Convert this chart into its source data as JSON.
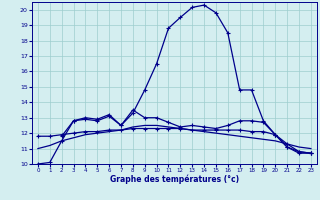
{
  "xlabel": "Graphe des températures (°c)",
  "background_color": "#d4eef0",
  "grid_color": "#9ecece",
  "line_color": "#00008b",
  "xlim": [
    -0.5,
    23.5
  ],
  "ylim": [
    10,
    20.5
  ],
  "yticks": [
    10,
    11,
    12,
    13,
    14,
    15,
    16,
    17,
    18,
    19,
    20
  ],
  "xticks": [
    0,
    1,
    2,
    3,
    4,
    5,
    6,
    7,
    8,
    9,
    10,
    11,
    12,
    13,
    14,
    15,
    16,
    17,
    18,
    19,
    20,
    21,
    22,
    23
  ],
  "line1_x": [
    0,
    1,
    2,
    3,
    4,
    5,
    6,
    7,
    8,
    9,
    10,
    11,
    12,
    13,
    14,
    15,
    16,
    17,
    18,
    19,
    20,
    21,
    22,
    23
  ],
  "line1_y": [
    10.0,
    10.1,
    11.5,
    12.8,
    13.0,
    12.9,
    13.2,
    12.5,
    13.3,
    14.8,
    16.5,
    18.8,
    19.5,
    20.15,
    20.3,
    19.8,
    18.5,
    14.8,
    14.8,
    12.8,
    11.9,
    11.1,
    10.8,
    10.7
  ],
  "line2_x": [
    2,
    3,
    4,
    5,
    6,
    7,
    8,
    9,
    10,
    11,
    12,
    13,
    14,
    15,
    16,
    17,
    18,
    19,
    20,
    21,
    22,
    23
  ],
  "line2_y": [
    11.8,
    12.8,
    12.9,
    12.8,
    13.1,
    12.5,
    13.5,
    13.0,
    13.0,
    12.7,
    12.4,
    12.5,
    12.4,
    12.3,
    12.5,
    12.8,
    12.8,
    12.7,
    11.9,
    11.1,
    10.7,
    10.7
  ],
  "line3_x": [
    0,
    1,
    2,
    3,
    4,
    5,
    6,
    7,
    8,
    9,
    10,
    11,
    12,
    13,
    14,
    15,
    16,
    17,
    18,
    19,
    20,
    21,
    22,
    23
  ],
  "line3_y": [
    11.8,
    11.8,
    11.9,
    12.0,
    12.1,
    12.1,
    12.2,
    12.2,
    12.3,
    12.3,
    12.3,
    12.3,
    12.3,
    12.2,
    12.2,
    12.2,
    12.2,
    12.2,
    12.1,
    12.1,
    11.9,
    11.3,
    10.8,
    10.7
  ],
  "line4_x": [
    0,
    1,
    2,
    3,
    4,
    5,
    6,
    7,
    8,
    9,
    10,
    11,
    12,
    13,
    14,
    15,
    16,
    17,
    18,
    19,
    20,
    21,
    22,
    23
  ],
  "line4_y": [
    11.0,
    11.2,
    11.5,
    11.7,
    11.9,
    12.0,
    12.1,
    12.2,
    12.4,
    12.5,
    12.5,
    12.4,
    12.3,
    12.2,
    12.1,
    12.0,
    11.9,
    11.8,
    11.7,
    11.6,
    11.5,
    11.3,
    11.1,
    11.0
  ]
}
